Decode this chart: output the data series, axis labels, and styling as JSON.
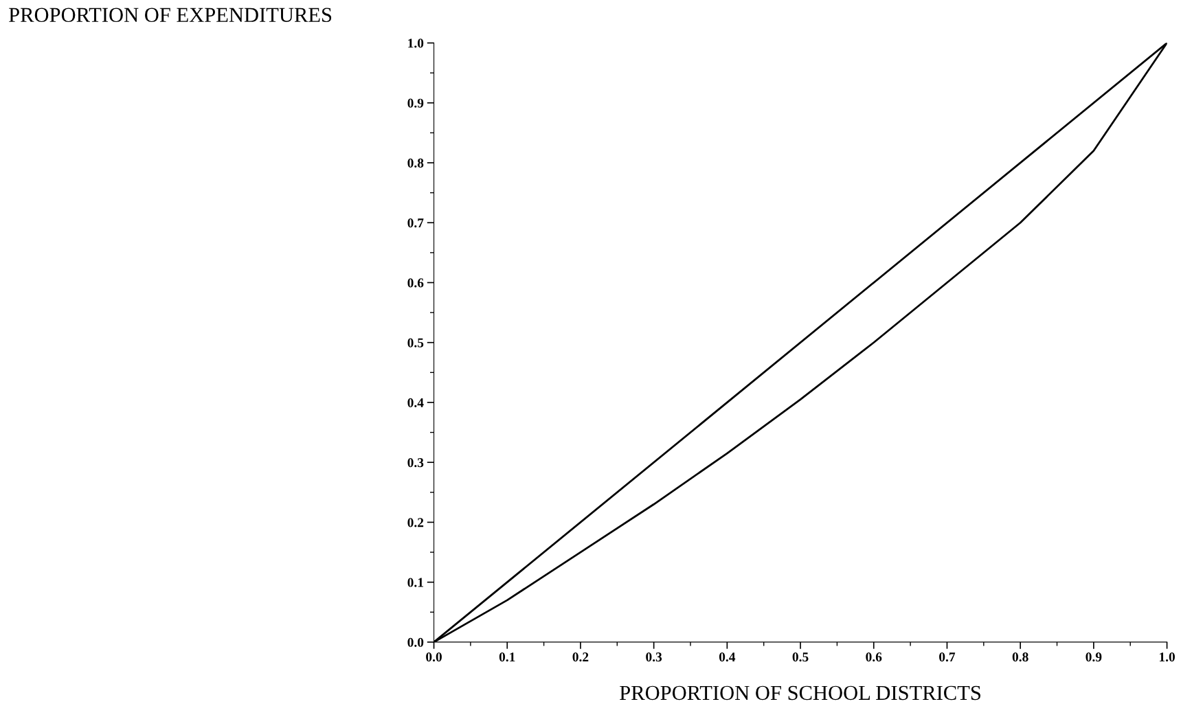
{
  "chart_data": {
    "type": "line",
    "ylabel": "PROPORTION OF EXPENDITURES",
    "xlabel": "PROPORTION OF SCHOOL DISTRICTS",
    "series": [
      {
        "color": "#000000",
        "x": [
          0,
          1
        ],
        "values": [
          0,
          1
        ]
      },
      {
        "color": "#000000",
        "x": [
          0,
          0.1,
          0.2,
          0.3,
          0.4,
          0.5,
          0.6,
          0.7,
          0.8,
          0.9,
          1.0
        ],
        "values": [
          0,
          0.07,
          0.15,
          0.23,
          0.315,
          0.405,
          0.5,
          0.6,
          0.7,
          0.82,
          1.0
        ]
      }
    ],
    "xlim": [
      0,
      1
    ],
    "ylim": [
      0,
      1
    ],
    "xticks": [
      {
        "value": 0,
        "label": "0.0"
      },
      0.1,
      0.2,
      0.3,
      0.4,
      0.5,
      0.6,
      0.7,
      0.8,
      0.9,
      {
        "value": 1,
        "label": "1.0"
      }
    ],
    "yticks": [
      {
        "value": 0,
        "label": "0.0"
      },
      0.1,
      0.2,
      0.3,
      0.4,
      0.5,
      0.6,
      0.7,
      0.8,
      0.9,
      {
        "value": 1,
        "label": "1.0"
      }
    ],
    "marker": "none",
    "line_style": "solid"
  }
}
